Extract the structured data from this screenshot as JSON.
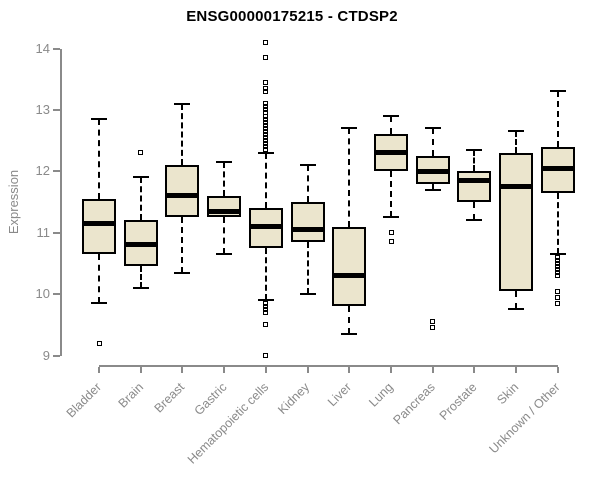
{
  "chart_data": {
    "type": "boxplot",
    "title": "ENSG00000175215 - CTDSP2",
    "xlabel": "",
    "ylabel": "Expression",
    "ylim": [
      9,
      14
    ],
    "yticks": [
      9,
      10,
      11,
      12,
      13,
      14
    ],
    "grid": "off",
    "legend": "none",
    "categories": [
      "Bladder",
      "Brain",
      "Breast",
      "Gastric",
      "Hematopoietic cells",
      "Kidney",
      "Liver",
      "Lung",
      "Pancreas",
      "Prostate",
      "Skin",
      "Unknown / Other"
    ],
    "series": [
      {
        "label": "Bladder",
        "whisker_low": 9.85,
        "q1": 10.65,
        "median": 11.15,
        "q3": 11.55,
        "whisker_high": 12.85,
        "outliers": [
          9.2
        ]
      },
      {
        "label": "Brain",
        "whisker_low": 10.1,
        "q1": 10.45,
        "median": 10.8,
        "q3": 11.2,
        "whisker_high": 11.9,
        "outliers": [
          12.3
        ]
      },
      {
        "label": "Breast",
        "whisker_low": 10.35,
        "q1": 11.25,
        "median": 11.6,
        "q3": 12.1,
        "whisker_high": 13.1,
        "outliers": []
      },
      {
        "label": "Gastric",
        "whisker_low": 10.65,
        "q1": 11.25,
        "median": 11.35,
        "q3": 11.6,
        "whisker_high": 12.15,
        "outliers": []
      },
      {
        "label": "Hematopoietic cells",
        "whisker_low": 9.9,
        "q1": 10.75,
        "median": 11.1,
        "q3": 11.4,
        "whisker_high": 12.3,
        "outliers": [
          14.1,
          13.85,
          13.45,
          13.35,
          13.3,
          13.1,
          13.05,
          13.0,
          12.95,
          12.9,
          12.85,
          12.8,
          12.75,
          12.7,
          12.65,
          12.6,
          12.55,
          12.5,
          12.45,
          12.4,
          12.35,
          9.85,
          9.8,
          9.75,
          9.7,
          9.5,
          9.0
        ]
      },
      {
        "label": "Kidney",
        "whisker_low": 10.0,
        "q1": 10.85,
        "median": 11.05,
        "q3": 11.5,
        "whisker_high": 12.1,
        "outliers": []
      },
      {
        "label": "Liver",
        "whisker_low": 9.35,
        "q1": 9.8,
        "median": 10.3,
        "q3": 11.1,
        "whisker_high": 12.7,
        "outliers": []
      },
      {
        "label": "Lung",
        "whisker_low": 11.25,
        "q1": 12.0,
        "median": 12.3,
        "q3": 12.6,
        "whisker_high": 12.9,
        "outliers": [
          11.0,
          10.85
        ]
      },
      {
        "label": "Pancreas",
        "whisker_low": 11.7,
        "q1": 11.8,
        "median": 12.0,
        "q3": 12.25,
        "whisker_high": 12.7,
        "outliers": [
          9.55,
          9.45
        ]
      },
      {
        "label": "Prostate",
        "whisker_low": 11.2,
        "q1": 11.5,
        "median": 11.85,
        "q3": 12.0,
        "whisker_high": 12.35,
        "outliers": []
      },
      {
        "label": "Skin",
        "whisker_low": 9.75,
        "q1": 10.05,
        "median": 11.75,
        "q3": 12.3,
        "whisker_high": 12.65,
        "outliers": []
      },
      {
        "label": "Unknown / Other",
        "whisker_low": 10.65,
        "q1": 11.65,
        "median": 12.05,
        "q3": 12.4,
        "whisker_high": 13.3,
        "outliers": [
          10.6,
          10.55,
          10.5,
          10.45,
          10.4,
          10.35,
          10.3,
          10.05,
          9.95,
          9.85
        ]
      }
    ],
    "colors": {
      "box_fill": "#EBE5CD",
      "box_border": "#000000",
      "median": "#000000",
      "whisker": "#000000",
      "axis": "#8a8a8a",
      "tick_label": "#8a8a8a",
      "title": "#000000"
    }
  }
}
